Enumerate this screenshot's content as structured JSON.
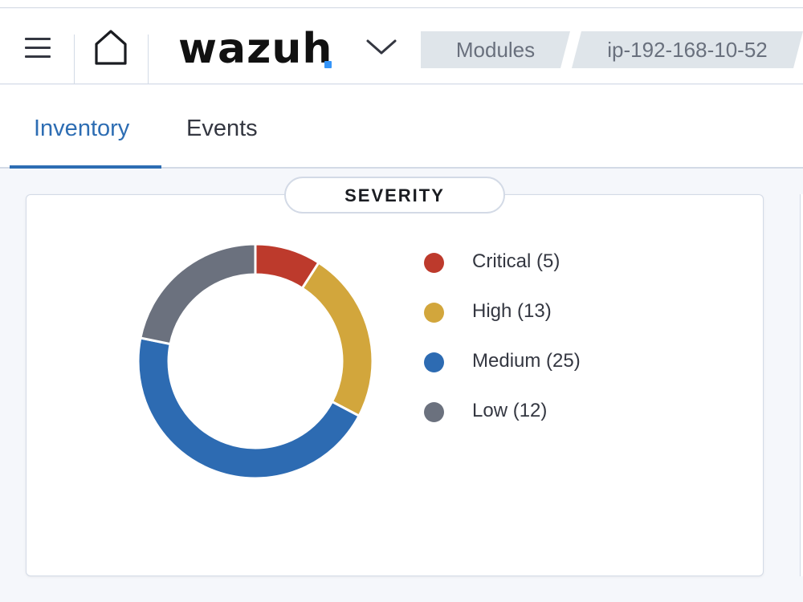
{
  "header": {
    "logo_text": "wazuh",
    "breadcrumbs": [
      "Modules",
      "ip-192-168-10-52"
    ]
  },
  "tabs": [
    {
      "label": "Inventory",
      "active": true
    },
    {
      "label": "Events",
      "active": false
    }
  ],
  "severity_panel": {
    "title": "SEVERITY"
  },
  "chart_data": {
    "type": "pie",
    "title": "SEVERITY",
    "donut": true,
    "legend_placement": "right",
    "categories": [
      "Critical",
      "High",
      "Medium",
      "Low"
    ],
    "values": [
      5,
      13,
      25,
      12
    ],
    "legend_labels": [
      "Critical (5)",
      "High (13)",
      "Medium (25)",
      "Low (12)"
    ],
    "colors": [
      "#bd3a2c",
      "#d2a63c",
      "#2d6bb2",
      "#6b717e"
    ]
  },
  "colors": {
    "accent": "#2d6db3",
    "logo_dot": "#3595f9",
    "breadcrumb_bg": "#dfe5ea"
  },
  "icons": {
    "menu": "menu-icon",
    "home": "home-icon",
    "chevron": "chevron-down-icon"
  }
}
